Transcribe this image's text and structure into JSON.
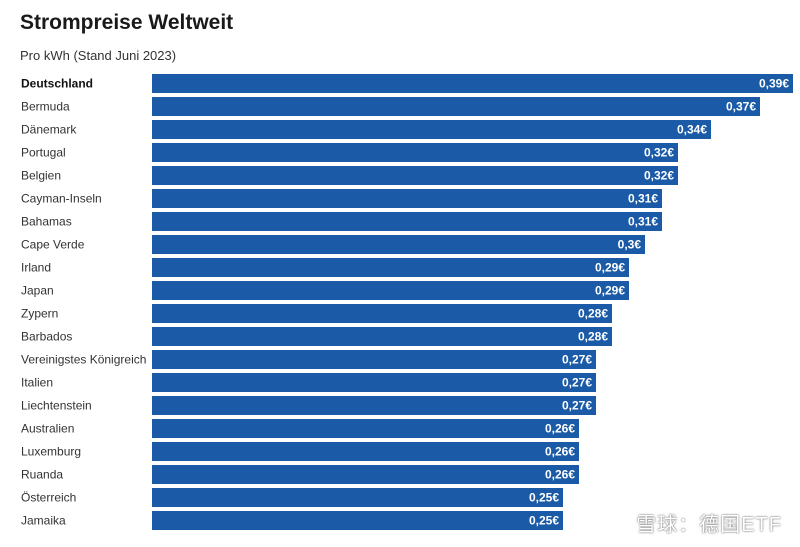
{
  "title": "Strompreise Weltweit",
  "subtitle": "Pro kWh (Stand Juni 2023)",
  "watermark": "雪球：德国ETF",
  "colors": {
    "bar": "#1a5aa6",
    "bar_label": "#ffffff",
    "category_text": "#333333"
  },
  "chart_data": {
    "type": "bar",
    "orientation": "horizontal",
    "title": "Strompreise Weltweit",
    "subtitle": "Pro kWh (Stand Juni 2023)",
    "highlighted_category": "Deutschland",
    "categories": [
      "Deutschland",
      "Bermuda",
      "Dänemark",
      "Portugal",
      "Belgien",
      "Cayman-Inseln",
      "Bahamas",
      "Cape Verde",
      "Irland",
      "Japan",
      "Zypern",
      "Barbados",
      "Vereinigstes Königreich",
      "Italien",
      "Liechtenstein",
      "Australien",
      "Luxemburg",
      "Ruanda",
      "Österreich",
      "Jamaika"
    ],
    "values": [
      0.39,
      0.37,
      0.34,
      0.32,
      0.32,
      0.31,
      0.31,
      0.3,
      0.29,
      0.29,
      0.28,
      0.28,
      0.27,
      0.27,
      0.27,
      0.26,
      0.26,
      0.26,
      0.25,
      0.25
    ],
    "value_labels": [
      "0,39€",
      "0,37€",
      "0,34€",
      "0,32€",
      "0,32€",
      "0,31€",
      "0,31€",
      "0,3€",
      "0,29€",
      "0,29€",
      "0,28€",
      "0,28€",
      "0,27€",
      "0,27€",
      "0,27€",
      "0,26€",
      "0,26€",
      "0,26€",
      "0,25€",
      "0,25€"
    ],
    "xlim": [
      0,
      0.39
    ],
    "grid": false,
    "legend": "none"
  }
}
